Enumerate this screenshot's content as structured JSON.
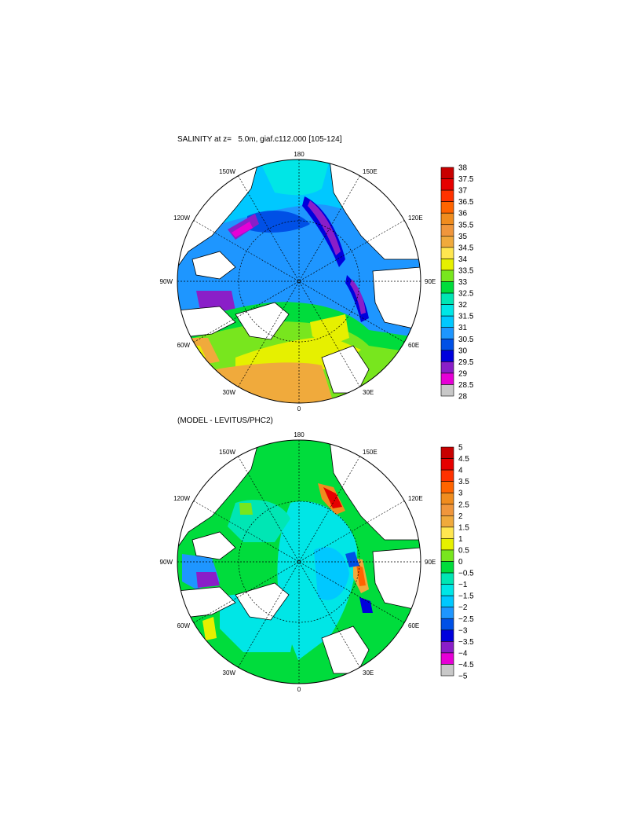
{
  "colors": {
    "salinity_scale": [
      "#636363",
      "#c8c8c8",
      "#e600d6",
      "#8a1ec8",
      "#0000dc",
      "#0050e6",
      "#1e96ff",
      "#00c8ff",
      "#00e6e6",
      "#00e6b4",
      "#00dc3c",
      "#78e61e",
      "#e6f000",
      "#ffe650",
      "#f0aa3c",
      "#f0963c",
      "#f08c1e",
      "#ff6400",
      "#ff3200",
      "#e60000",
      "#c80000"
    ],
    "difference_scale": [
      "#636363",
      "#c8c8c8",
      "#e600d6",
      "#8a1ec8",
      "#0000dc",
      "#0050e6",
      "#1e96ff",
      "#00c8ff",
      "#00e6e6",
      "#00e6b4",
      "#00dc3c",
      "#78e61e",
      "#e6f000",
      "#ffe650",
      "#f0aa3c",
      "#f0963c",
      "#f08c1e",
      "#ff6400",
      "#ff3200",
      "#e60000",
      "#c80000"
    ],
    "land": "#ffffff",
    "coast": "#000000"
  },
  "map_labels": {
    "n": "180",
    "s": "0",
    "e": "90E",
    "w": "90W",
    "ne": "150E",
    "nw": "150W",
    "ene": "120E",
    "wnw": "120W",
    "ese": "60E",
    "wsw": "60W",
    "se": "30E",
    "sw": "30W"
  },
  "panels": [
    {
      "title": "SALINITY at z=   5.0m, giaf.c112.000 [105-124]",
      "colorbar_labels": [
        "38",
        "37.5",
        "37",
        "36.5",
        "36",
        "35.5",
        "35",
        "34.5",
        "34",
        "33.5",
        "33",
        "32.5",
        "32",
        "31.5",
        "31",
        "30.5",
        "30",
        "29.5",
        "29",
        "28.5",
        "28"
      ]
    },
    {
      "title": "(MODEL - LEVITUS/PHC2)",
      "colorbar_labels": [
        "5",
        "4.5",
        "4",
        "3.5",
        "3",
        "2.5",
        "2",
        "1.5",
        "1",
        "0.5",
        "0",
        "−0.5",
        "−1",
        "−1.5",
        "−2",
        "−2.5",
        "−3",
        "−3.5",
        "−4",
        "−4.5",
        "−5"
      ]
    }
  ]
}
